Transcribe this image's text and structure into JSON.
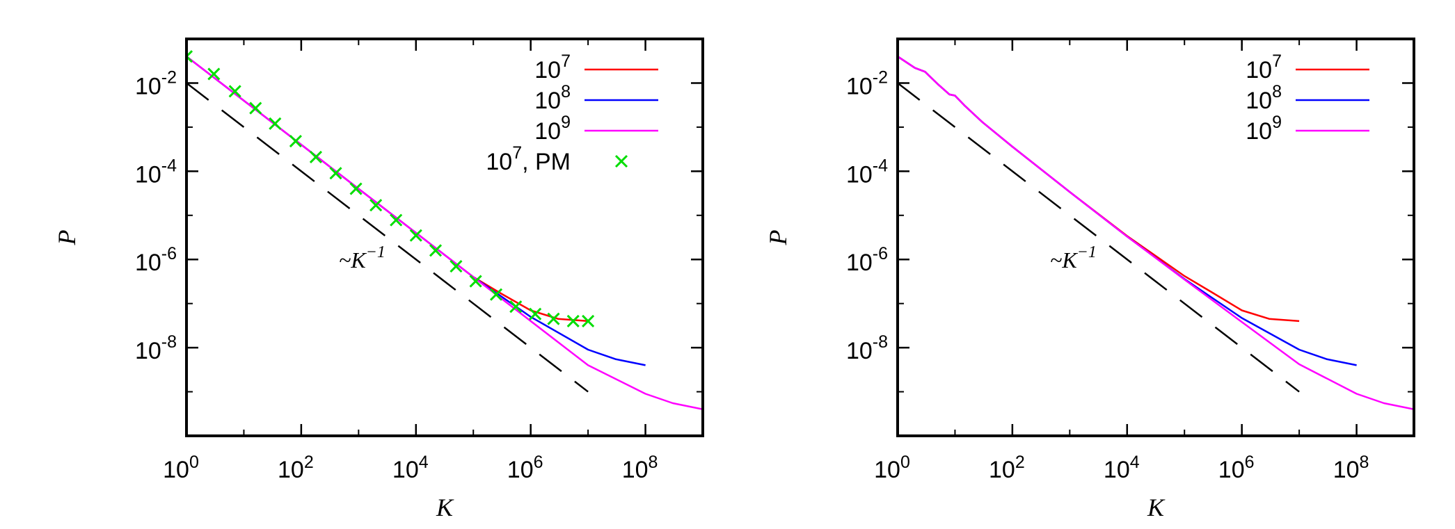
{
  "chart_data": [
    {
      "type": "line",
      "panel": "left",
      "xlabel": "K",
      "ylabel": "P",
      "x_scale": "log",
      "y_scale": "log",
      "xlim": [
        1,
        1000000000
      ],
      "ylim": [
        1e-10,
        0.1
      ],
      "x_ticks": [
        {
          "value": 1,
          "base": "10",
          "exp": "0"
        },
        {
          "value": 100,
          "base": "10",
          "exp": "2"
        },
        {
          "value": 10000,
          "base": "10",
          "exp": "4"
        },
        {
          "value": 1000000,
          "base": "10",
          "exp": "6"
        },
        {
          "value": 100000000,
          "base": "10",
          "exp": "8"
        }
      ],
      "y_ticks": [
        {
          "value": 0.01,
          "base": "10",
          "exp": "-2"
        },
        {
          "value": 0.0001,
          "base": "10",
          "exp": "-4"
        },
        {
          "value": 1e-06,
          "base": "10",
          "exp": "-6"
        },
        {
          "value": 1e-08,
          "base": "10",
          "exp": "-8"
        }
      ],
      "legend_placement": "top-right",
      "series": [
        {
          "name": "10^7",
          "legend": {
            "base": "10",
            "exp": "7"
          },
          "style": "line",
          "color": "#ff0000",
          "x": [
            1,
            10,
            100,
            1000,
            10000,
            100000,
            300000,
            1000000,
            3000000,
            10000000
          ],
          "y": [
            0.04,
            0.004,
            0.0004,
            4e-05,
            4e-06,
            4e-07,
            1.7e-07,
            7e-08,
            4.5e-08,
            4e-08
          ]
        },
        {
          "name": "10^8",
          "legend": {
            "base": "10",
            "exp": "8"
          },
          "style": "line",
          "color": "#0000ff",
          "x": [
            1,
            10,
            100,
            1000,
            10000,
            100000,
            1000000,
            10000000,
            30000000,
            100000000
          ],
          "y": [
            0.04,
            0.004,
            0.0004,
            4e-05,
            4e-06,
            4e-07,
            5e-08,
            9e-09,
            5.5e-09,
            4e-09
          ]
        },
        {
          "name": "10^9",
          "legend": {
            "base": "10",
            "exp": "9"
          },
          "style": "line",
          "color": "#ff00ff",
          "x": [
            1,
            10,
            100,
            1000,
            10000,
            100000,
            1000000,
            10000000,
            100000000,
            300000000,
            1000000000
          ],
          "y": [
            0.04,
            0.004,
            0.0004,
            4e-05,
            4e-06,
            4e-07,
            4e-08,
            4e-09,
            9e-10,
            5.5e-10,
            4e-10
          ]
        },
        {
          "name": "10^7, PM",
          "legend": {
            "base": "10",
            "exp": "7",
            "suffix": ", PM"
          },
          "style": "marker",
          "color": "#00dd00",
          "x": [
            1,
            3,
            7,
            16,
            35,
            80,
            180,
            400,
            900,
            2000,
            4500,
            10000,
            22000,
            50000,
            110000,
            250000,
            550000,
            1200000,
            2500000,
            5500000,
            10000000
          ],
          "y": [
            0.04,
            0.016,
            0.0065,
            0.0027,
            0.0012,
            0.00048,
            0.00021,
            9e-05,
            4e-05,
            1.7e-05,
            7.8e-06,
            3.5e-06,
            1.6e-06,
            7e-07,
            3.2e-07,
            1.6e-07,
            8.5e-08,
            5.8e-08,
            4.5e-08,
            4e-08,
            4e-08
          ]
        }
      ],
      "reference_line": {
        "label_prefix": "~K",
        "label_exp": "−1",
        "x": [
          1,
          10000000
        ],
        "y": [
          0.01,
          1e-09
        ]
      }
    },
    {
      "type": "line",
      "panel": "right",
      "xlabel": "K",
      "ylabel": "P",
      "x_scale": "log",
      "y_scale": "log",
      "xlim": [
        1,
        1000000000
      ],
      "ylim": [
        1e-10,
        0.1
      ],
      "x_ticks": [
        {
          "value": 1,
          "base": "10",
          "exp": "0"
        },
        {
          "value": 100,
          "base": "10",
          "exp": "2"
        },
        {
          "value": 10000,
          "base": "10",
          "exp": "4"
        },
        {
          "value": 1000000,
          "base": "10",
          "exp": "6"
        },
        {
          "value": 100000000,
          "base": "10",
          "exp": "8"
        }
      ],
      "y_ticks": [
        {
          "value": 0.01,
          "base": "10",
          "exp": "-2"
        },
        {
          "value": 0.0001,
          "base": "10",
          "exp": "-4"
        },
        {
          "value": 1e-06,
          "base": "10",
          "exp": "-6"
        },
        {
          "value": 1e-08,
          "base": "10",
          "exp": "-8"
        }
      ],
      "legend_placement": "top-right",
      "series": [
        {
          "name": "10^7",
          "legend": {
            "base": "10",
            "exp": "7"
          },
          "style": "line",
          "color": "#ff0000",
          "x": [
            1,
            2,
            3,
            5,
            8,
            10,
            15,
            30,
            100,
            1000,
            10000,
            100000,
            300000,
            1000000,
            3000000,
            10000000
          ],
          "y": [
            0.04,
            0.022,
            0.018,
            0.0095,
            0.0055,
            0.0052,
            0.003,
            0.0013,
            0.00036,
            3.4e-05,
            3.4e-06,
            4.2e-07,
            1.8e-07,
            7e-08,
            4.5e-08,
            4e-08
          ]
        },
        {
          "name": "10^8",
          "legend": {
            "base": "10",
            "exp": "8"
          },
          "style": "line",
          "color": "#0000ff",
          "x": [
            1,
            2,
            3,
            5,
            8,
            10,
            15,
            30,
            100,
            1000,
            10000,
            100000,
            1000000,
            10000000,
            30000000,
            100000000
          ],
          "y": [
            0.04,
            0.022,
            0.018,
            0.0095,
            0.0055,
            0.0052,
            0.003,
            0.0013,
            0.00036,
            3.4e-05,
            3.3e-06,
            3.6e-07,
            4.7e-08,
            9e-09,
            5.5e-09,
            4e-09
          ]
        },
        {
          "name": "10^9",
          "legend": {
            "base": "10",
            "exp": "9"
          },
          "style": "line",
          "color": "#ff00ff",
          "x": [
            1,
            2,
            3,
            5,
            8,
            10,
            15,
            30,
            100,
            1000,
            10000,
            100000,
            1000000,
            10000000,
            100000000,
            300000000,
            1000000000
          ],
          "y": [
            0.04,
            0.022,
            0.018,
            0.0095,
            0.0055,
            0.0052,
            0.003,
            0.0013,
            0.00036,
            3.4e-05,
            3.3e-06,
            3.5e-07,
            3.8e-08,
            4.2e-09,
            9e-10,
            5.5e-10,
            4e-10
          ]
        }
      ],
      "reference_line": {
        "label_prefix": "~K",
        "label_exp": "−1",
        "x": [
          1,
          10000000
        ],
        "y": [
          0.01,
          1e-09
        ]
      }
    }
  ]
}
